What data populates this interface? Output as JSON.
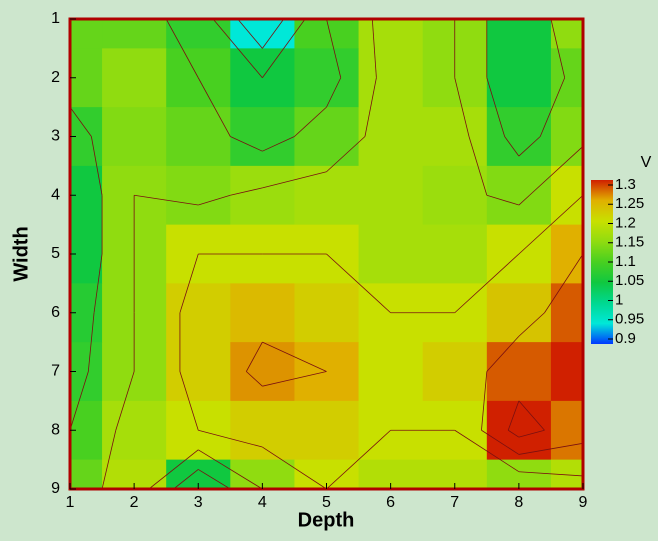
{
  "chart_data": {
    "type": "contour",
    "xlabel": "Depth",
    "ylabel": "Width",
    "colorbar_label": "V",
    "x": [
      1,
      2,
      3,
      4,
      5,
      6,
      7,
      8,
      9
    ],
    "y": [
      1,
      2,
      3,
      4,
      5,
      6,
      7,
      8,
      9
    ],
    "z": [
      [
        1.12,
        1.12,
        1.08,
        0.95,
        1.1,
        1.17,
        1.15,
        1.05,
        1.15
      ],
      [
        1.12,
        1.15,
        1.1,
        1.05,
        1.08,
        1.17,
        1.15,
        1.05,
        1.12
      ],
      [
        1.08,
        1.14,
        1.12,
        1.08,
        1.12,
        1.17,
        1.17,
        1.08,
        1.14
      ],
      [
        1.05,
        1.15,
        1.14,
        1.16,
        1.17,
        1.17,
        1.16,
        1.14,
        1.2
      ],
      [
        1.05,
        1.15,
        1.2,
        1.2,
        1.2,
        1.17,
        1.17,
        1.2,
        1.25
      ],
      [
        1.07,
        1.15,
        1.22,
        1.24,
        1.22,
        1.2,
        1.2,
        1.23,
        1.28
      ],
      [
        1.08,
        1.15,
        1.22,
        1.26,
        1.25,
        1.2,
        1.22,
        1.28,
        1.3
      ],
      [
        1.1,
        1.17,
        1.2,
        1.22,
        1.22,
        1.2,
        1.2,
        1.32,
        1.27
      ],
      [
        1.12,
        1.18,
        1.05,
        1.15,
        1.2,
        1.18,
        1.18,
        1.15,
        1.18
      ]
    ],
    "xlim": [
      1,
      9
    ],
    "ylim": [
      1,
      9
    ],
    "xticks": [
      1,
      2,
      3,
      4,
      5,
      6,
      7,
      8,
      9
    ],
    "yticks": [
      1,
      2,
      3,
      4,
      5,
      6,
      7,
      8,
      9
    ],
    "y_inverted": true,
    "colorbar_ticks": [
      0.9,
      0.95,
      1,
      1.05,
      1.1,
      1.15,
      1.2,
      1.25,
      1.3
    ],
    "colors": [
      "#0038ff",
      "#00e8d8",
      "#00d890",
      "#10c840",
      "#48d020",
      "#90dc10",
      "#c8e000",
      "#e0b000",
      "#d02000"
    ],
    "line_color": "#7a1010"
  }
}
